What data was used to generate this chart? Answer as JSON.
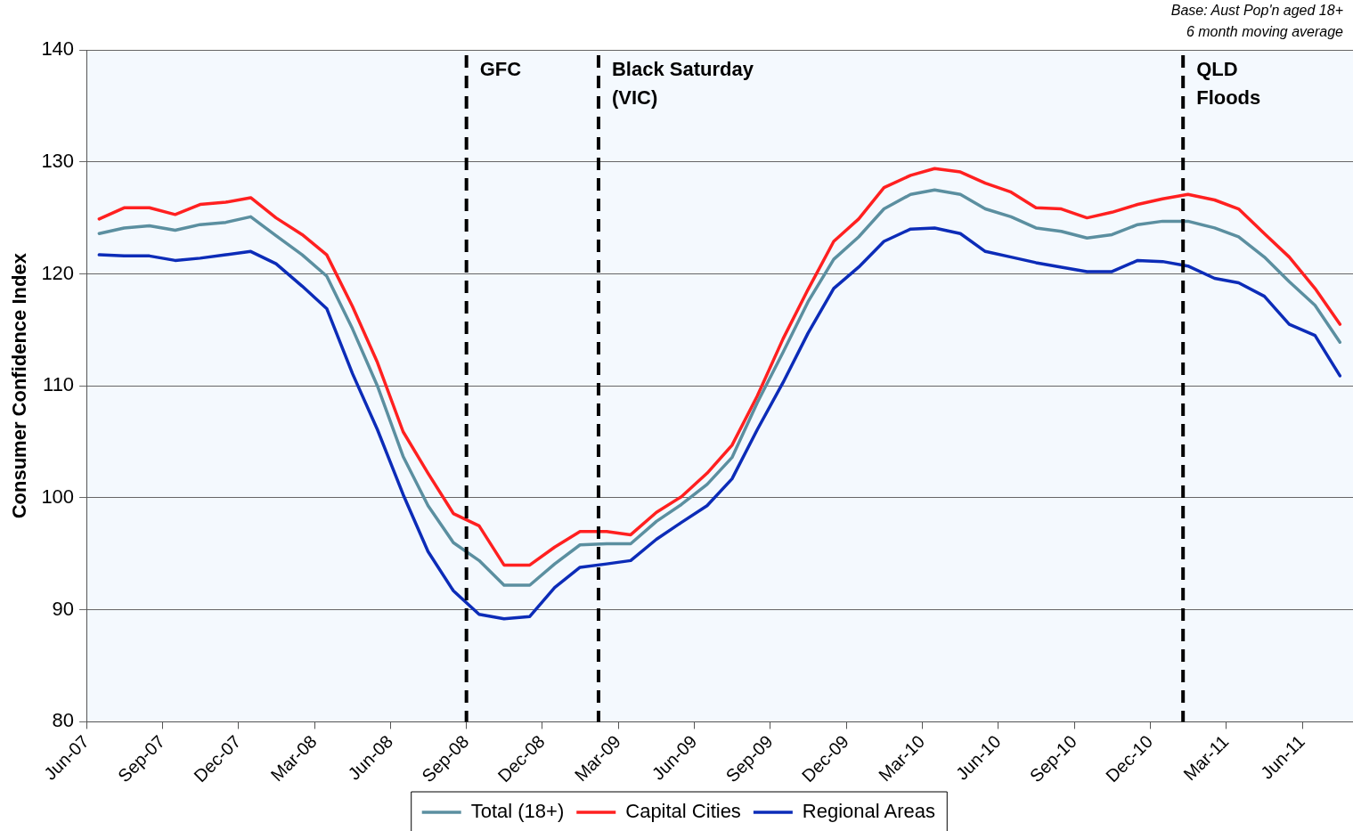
{
  "chart_data": {
    "type": "line",
    "ylabel": "Consumer Confidence Index",
    "annotations": [
      "Base: Aust Pop'n aged 18+",
      "6 month moving average"
    ],
    "x": [
      "2007-06-16",
      "2007-07-16",
      "2007-08-16",
      "2007-09-16",
      "2007-10-16",
      "2007-11-16",
      "2007-12-16",
      "2008-01-16",
      "2008-02-16",
      "2008-03-16",
      "2008-04-16",
      "2008-05-16",
      "2008-06-16",
      "2008-07-16",
      "2008-08-16",
      "2008-09-16",
      "2008-10-16",
      "2008-11-16",
      "2008-12-16",
      "2009-01-16",
      "2009-02-16",
      "2009-03-16",
      "2009-04-16",
      "2009-05-16",
      "2009-06-16",
      "2009-07-16",
      "2009-08-16",
      "2009-09-16",
      "2009-10-16",
      "2009-11-16",
      "2009-12-16",
      "2010-01-16",
      "2010-02-16",
      "2010-03-16",
      "2010-04-16",
      "2010-05-16",
      "2010-06-16",
      "2010-07-16",
      "2010-08-16",
      "2010-09-16",
      "2010-10-16",
      "2010-11-16",
      "2010-12-16",
      "2011-01-16",
      "2011-02-16",
      "2011-03-16",
      "2011-04-16",
      "2011-05-16",
      "2011-06-16",
      "2011-07-16"
    ],
    "series": [
      {
        "name": "Total (18+)",
        "color": "#5b8fa0",
        "values": [
          123.6,
          124.1,
          124.3,
          123.9,
          124.4,
          124.6,
          125.1,
          123.4,
          121.7,
          119.8,
          115.1,
          110.0,
          103.7,
          99.3,
          96.0,
          94.4,
          92.2,
          92.2,
          94.1,
          95.8,
          95.9,
          95.9,
          97.9,
          99.4,
          101.2,
          103.6,
          108.5,
          113.0,
          117.5,
          121.3,
          123.3,
          125.8,
          127.1,
          127.5,
          127.1,
          125.8,
          125.1,
          124.1,
          123.8,
          123.2,
          123.5,
          124.4,
          124.7,
          124.7,
          124.1,
          123.3,
          121.5,
          119.3,
          117.2,
          113.9
        ]
      },
      {
        "name": "Capital Cities",
        "color": "#ff2020",
        "values": [
          124.9,
          125.9,
          125.9,
          125.3,
          126.2,
          126.4,
          126.8,
          125.0,
          123.5,
          121.7,
          117.1,
          112.1,
          105.9,
          102.2,
          98.6,
          97.5,
          94.0,
          94.0,
          95.6,
          97.0,
          97.0,
          96.7,
          98.7,
          100.1,
          102.2,
          104.7,
          109.1,
          114.2,
          118.6,
          122.9,
          124.9,
          127.7,
          128.8,
          129.4,
          129.1,
          128.1,
          127.3,
          125.9,
          125.8,
          125.0,
          125.5,
          126.2,
          126.7,
          127.1,
          126.6,
          125.8,
          123.6,
          121.5,
          118.7,
          115.5
        ]
      },
      {
        "name": "Regional Areas",
        "color": "#0c2cb8",
        "values": [
          121.7,
          121.6,
          121.6,
          121.2,
          121.4,
          121.7,
          122.0,
          120.9,
          118.9,
          116.9,
          111.1,
          106.1,
          100.3,
          95.2,
          91.7,
          89.6,
          89.2,
          89.4,
          92.0,
          93.8,
          94.1,
          94.4,
          96.3,
          97.8,
          99.3,
          101.7,
          106.1,
          110.3,
          114.7,
          118.7,
          120.6,
          122.9,
          124.0,
          124.1,
          123.6,
          122.0,
          121.5,
          121.0,
          120.6,
          120.2,
          120.2,
          121.2,
          121.1,
          120.7,
          119.6,
          119.2,
          118.0,
          115.5,
          114.5,
          110.9
        ]
      }
    ],
    "xlim": [
      "2007-06",
      "2011-08"
    ],
    "xticks": [
      {
        "value": "2007-06",
        "label": "Jun-07"
      },
      {
        "value": "2007-09",
        "label": "Sep-07"
      },
      {
        "value": "2007-12",
        "label": "Dec-07"
      },
      {
        "value": "2008-03",
        "label": "Mar-08"
      },
      {
        "value": "2008-06",
        "label": "Jun-08"
      },
      {
        "value": "2008-09",
        "label": "Sep-08"
      },
      {
        "value": "2008-12",
        "label": "Dec-08"
      },
      {
        "value": "2009-03",
        "label": "Mar-09"
      },
      {
        "value": "2009-06",
        "label": "Jun-09"
      },
      {
        "value": "2009-09",
        "label": "Sep-09"
      },
      {
        "value": "2009-12",
        "label": "Dec-09"
      },
      {
        "value": "2010-03",
        "label": "Mar-10"
      },
      {
        "value": "2010-06",
        "label": "Jun-10"
      },
      {
        "value": "2010-09",
        "label": "Sep-10"
      },
      {
        "value": "2010-12",
        "label": "Dec-10"
      },
      {
        "value": "2011-03",
        "label": "Mar-11"
      },
      {
        "value": "2011-06",
        "label": "Jun-11"
      }
    ],
    "ylim": [
      80,
      140
    ],
    "yticks": [
      80,
      90,
      100,
      110,
      120,
      130,
      140
    ],
    "ref_lines": [
      {
        "axis": "x",
        "value": "2008-09",
        "label": "GFC",
        "color": "#000000",
        "line_style": "dashed"
      },
      {
        "axis": "x",
        "value": "2009-02-07",
        "label": "Black Saturday (VIC)",
        "color": "#000000",
        "line_style": "dashed"
      },
      {
        "axis": "x",
        "value": "2011-01-10",
        "label": "QLD Floods",
        "color": "#000000",
        "line_style": "dashed"
      }
    ],
    "grid": "y",
    "legend": "bottom",
    "marker": "none",
    "line_style": "solid"
  }
}
